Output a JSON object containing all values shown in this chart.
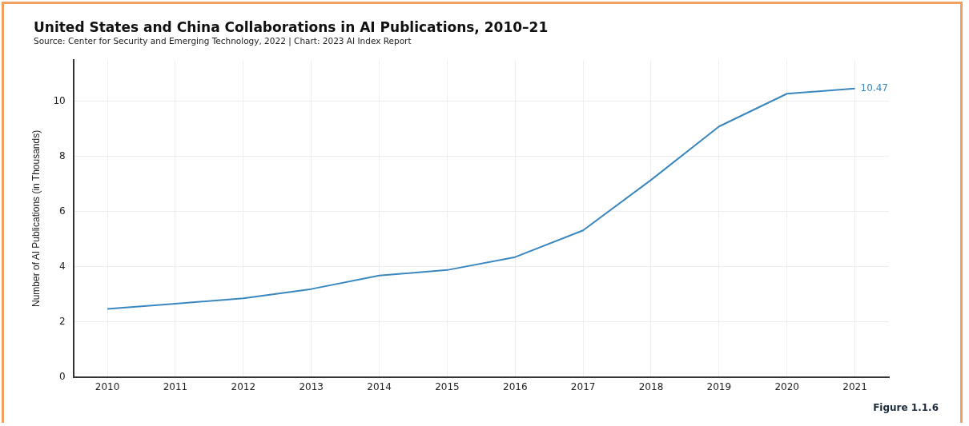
{
  "chart_data": {
    "type": "line",
    "title": "United States and China Collaborations in AI Publications, 2010–21",
    "subtitle": "Source: Center for Security and Emerging Technology, 2022 | Chart: 2023 AI Index Report",
    "ylabel": "Number of AI Publications (in Thousands)",
    "categories": [
      "2010",
      "2011",
      "2012",
      "2013",
      "2014",
      "2015",
      "2016",
      "2017",
      "2018",
      "2019",
      "2020",
      "2021"
    ],
    "series": [
      {
        "color": "#3a87c0",
        "values": [
          2.47,
          2.66,
          2.85,
          3.19,
          3.68,
          3.88,
          4.35,
          5.32,
          7.15,
          9.09,
          10.28,
          10.47
        ],
        "value_labels": [
          null,
          null,
          null,
          null,
          null,
          null,
          null,
          null,
          null,
          null,
          null,
          "10.47"
        ]
      }
    ],
    "ylim": [
      0,
      11.5
    ],
    "yticks": [
      0,
      2,
      4,
      6,
      8,
      10
    ],
    "grid": true,
    "legend": false,
    "marker": "none",
    "line_style": "solid",
    "annotations": [
      "Figure 1.1.6"
    ]
  }
}
